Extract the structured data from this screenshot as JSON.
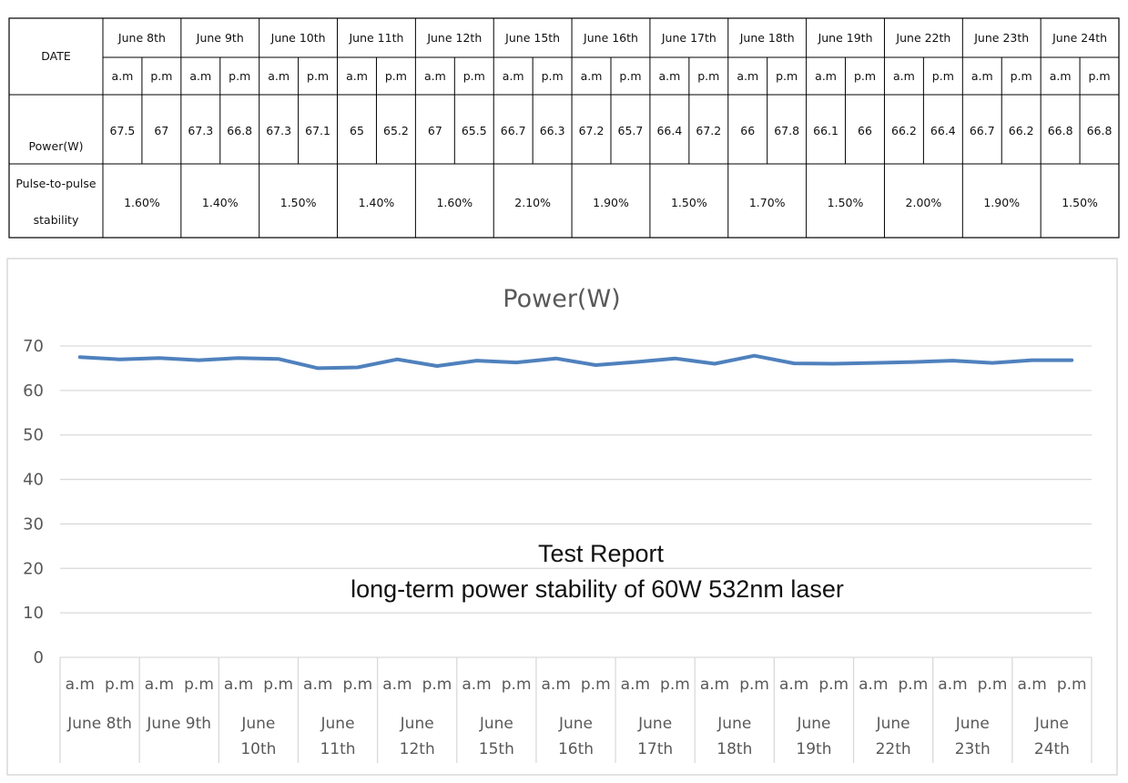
{
  "table": {
    "row_date_label": "DATE",
    "row_power_label": "Power(W)",
    "row_stability_label": [
      "Pulse-to-pulse",
      "stability"
    ],
    "dates": [
      "June 8th",
      "June 9th",
      "June 10th",
      "June 11th",
      "June 12th",
      "June 15th",
      "June 16th",
      "June 17th",
      "June 18th",
      "June 19th",
      "June 22th",
      "June 23th",
      "June 24th"
    ],
    "am_label": "a.m",
    "pm_label": "p.m",
    "power": [
      [
        "67.5",
        "67"
      ],
      [
        "67.3",
        "66.8"
      ],
      [
        "67.3",
        "67.1"
      ],
      [
        "65",
        "65.2"
      ],
      [
        "67",
        "65.5"
      ],
      [
        "66.7",
        "66.3"
      ],
      [
        "67.2",
        "65.7"
      ],
      [
        "66.4",
        "67.2"
      ],
      [
        "66",
        "67.8"
      ],
      [
        "66.1",
        "66"
      ],
      [
        "66.2",
        "66.4"
      ],
      [
        "66.7",
        "66.2"
      ],
      [
        "66.8",
        "66.8"
      ]
    ],
    "stability": [
      "1.60%",
      "1.40%",
      "1.50%",
      "1.40%",
      "1.60%",
      "2.10%",
      "1.90%",
      "1.50%",
      "1.70%",
      "1.50%",
      "2.00%",
      "1.90%",
      "1.50%"
    ]
  },
  "chart_data": {
    "type": "line",
    "title": "Power(W)",
    "annotation": [
      "Test Report",
      "long-term power stability of 60W 532nm laser"
    ],
    "group_labels": [
      [
        "June 8th"
      ],
      [
        "June 9th"
      ],
      [
        "June",
        "10th"
      ],
      [
        "June",
        "11th"
      ],
      [
        "June",
        "12th"
      ],
      [
        "June",
        "15th"
      ],
      [
        "June",
        "16th"
      ],
      [
        "June",
        "17th"
      ],
      [
        "June",
        "18th"
      ],
      [
        "June",
        "19th"
      ],
      [
        "June",
        "22th"
      ],
      [
        "June",
        "23th"
      ],
      [
        "June",
        "24th"
      ]
    ],
    "sub_labels": [
      "a.m",
      "p.m"
    ],
    "series": [
      {
        "values": [
          67.5,
          67,
          67.3,
          66.8,
          67.3,
          67.1,
          65,
          65.2,
          67,
          65.5,
          66.7,
          66.3,
          67.2,
          65.7,
          66.4,
          67.2,
          66,
          67.8,
          66.1,
          66,
          66.2,
          66.4,
          66.7,
          66.2,
          66.8,
          66.8
        ]
      }
    ],
    "yticks": [
      0,
      10,
      20,
      30,
      40,
      50,
      60,
      70
    ],
    "ylim": [
      0,
      70
    ],
    "grid": true,
    "line_color": "#4f81bd",
    "legend": "none"
  }
}
